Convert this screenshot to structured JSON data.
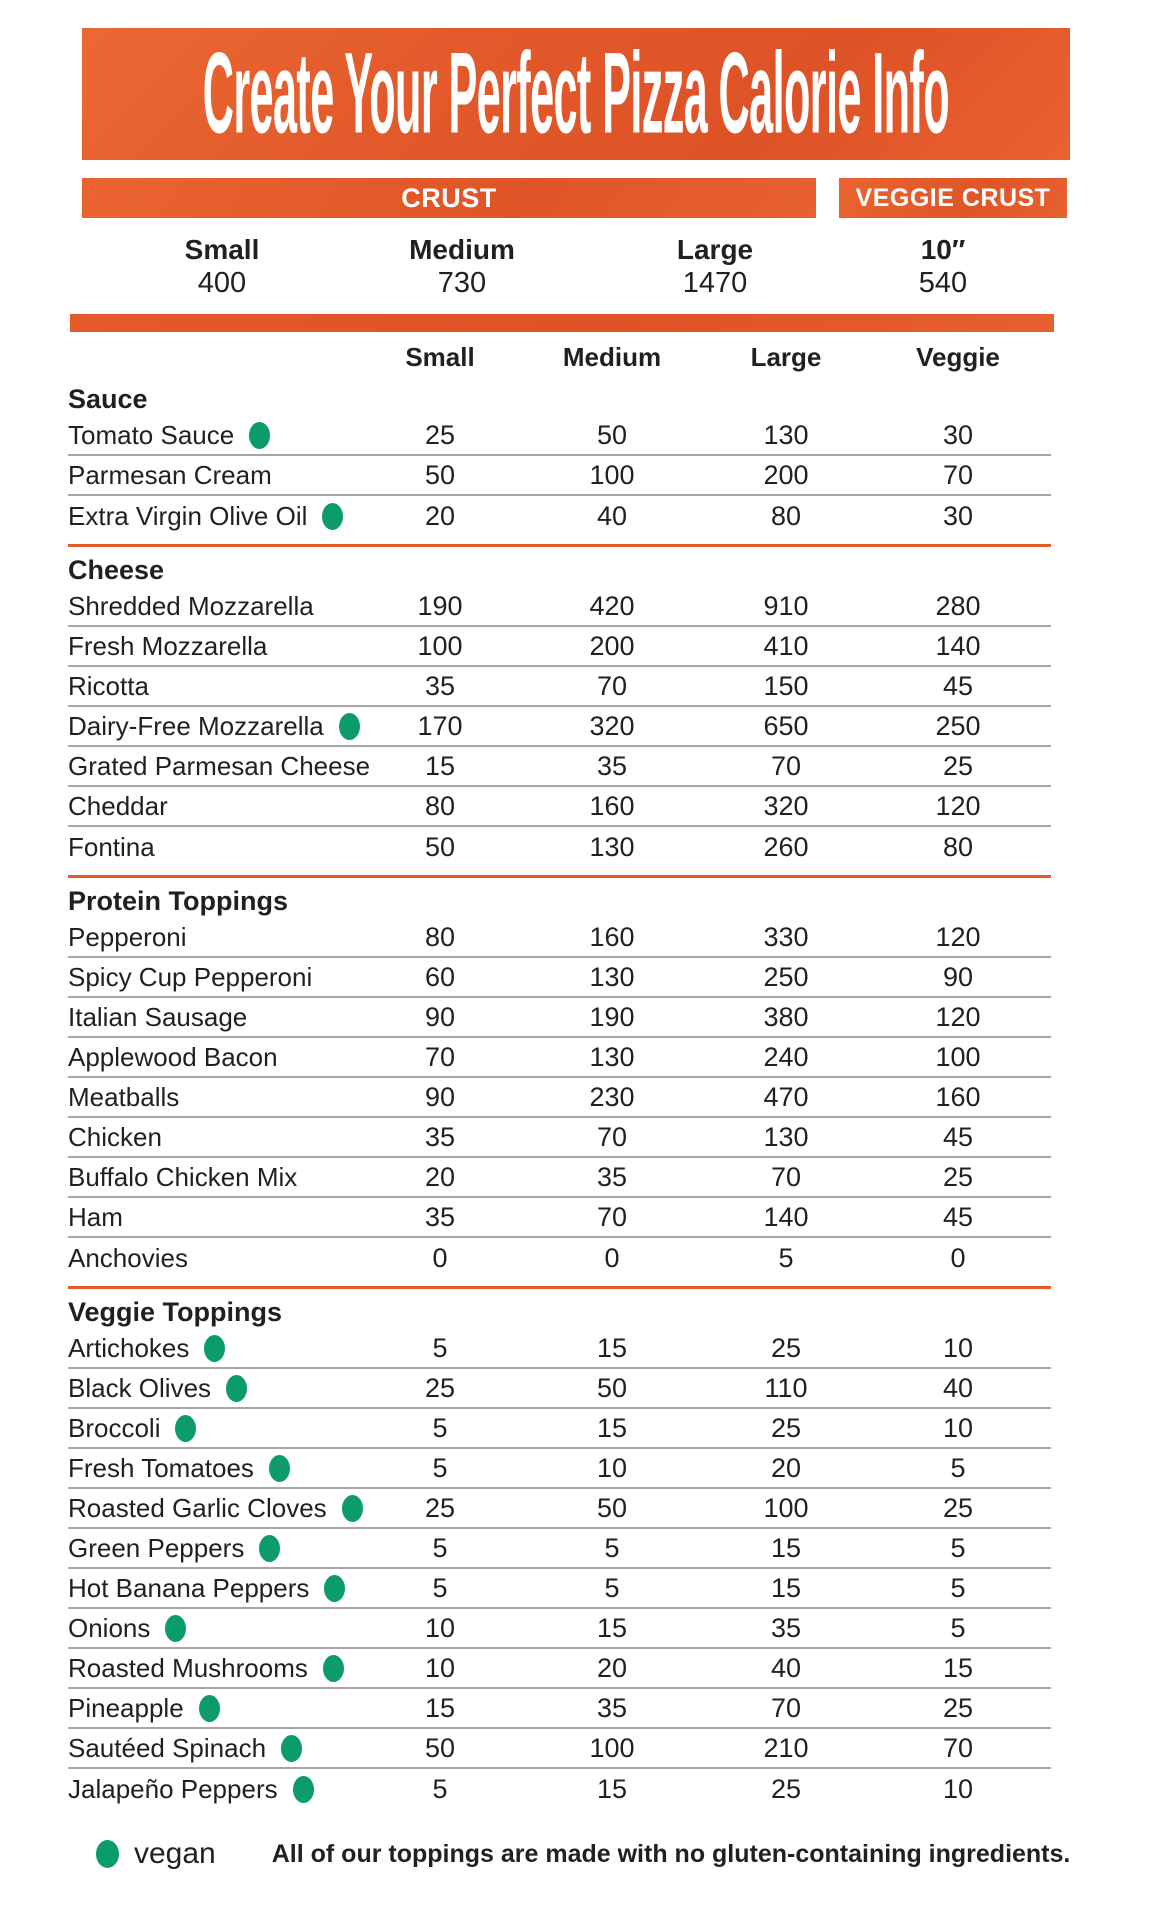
{
  "title": "Create Your Perfect Pizza Calorie Info",
  "crust_header": {
    "crust": "CRUST",
    "veggie_crust": "VEGGIE CRUST"
  },
  "crust_sizes": [
    {
      "label": "Small",
      "value": "400"
    },
    {
      "label": "Medium",
      "value": "730"
    },
    {
      "label": "Large",
      "value": "1470"
    },
    {
      "label": "10″",
      "value": "540"
    }
  ],
  "columns": [
    "Small",
    "Medium",
    "Large",
    "Veggie"
  ],
  "sections": [
    {
      "name": "Sauce",
      "rows": [
        {
          "label": "Tomato Sauce",
          "vegan": true,
          "values": [
            "25",
            "50",
            "130",
            "30"
          ]
        },
        {
          "label": "Parmesan Cream",
          "vegan": false,
          "values": [
            "50",
            "100",
            "200",
            "70"
          ]
        },
        {
          "label": "Extra Virgin Olive Oil",
          "vegan": true,
          "values": [
            "20",
            "40",
            "80",
            "30"
          ]
        }
      ]
    },
    {
      "name": "Cheese",
      "rows": [
        {
          "label": "Shredded Mozzarella",
          "vegan": false,
          "values": [
            "190",
            "420",
            "910",
            "280"
          ]
        },
        {
          "label": "Fresh Mozzarella",
          "vegan": false,
          "values": [
            "100",
            "200",
            "410",
            "140"
          ]
        },
        {
          "label": "Ricotta",
          "vegan": false,
          "values": [
            "35",
            "70",
            "150",
            "45"
          ]
        },
        {
          "label": "Dairy-Free Mozzarella",
          "vegan": true,
          "values": [
            "170",
            "320",
            "650",
            "250"
          ]
        },
        {
          "label": "Grated Parmesan Cheese",
          "vegan": false,
          "values": [
            "15",
            "35",
            "70",
            "25"
          ]
        },
        {
          "label": "Cheddar",
          "vegan": false,
          "values": [
            "80",
            "160",
            "320",
            "120"
          ]
        },
        {
          "label": "Fontina",
          "vegan": false,
          "values": [
            "50",
            "130",
            "260",
            "80"
          ]
        }
      ]
    },
    {
      "name": "Protein Toppings",
      "rows": [
        {
          "label": "Pepperoni",
          "vegan": false,
          "values": [
            "80",
            "160",
            "330",
            "120"
          ]
        },
        {
          "label": "Spicy Cup Pepperoni",
          "vegan": false,
          "values": [
            "60",
            "130",
            "250",
            "90"
          ]
        },
        {
          "label": "Italian Sausage",
          "vegan": false,
          "values": [
            "90",
            "190",
            "380",
            "120"
          ]
        },
        {
          "label": "Applewood Bacon",
          "vegan": false,
          "values": [
            "70",
            "130",
            "240",
            "100"
          ]
        },
        {
          "label": "Meatballs",
          "vegan": false,
          "values": [
            "90",
            "230",
            "470",
            "160"
          ]
        },
        {
          "label": "Chicken",
          "vegan": false,
          "values": [
            "35",
            "70",
            "130",
            "45"
          ]
        },
        {
          "label": "Buffalo Chicken Mix",
          "vegan": false,
          "values": [
            "20",
            "35",
            "70",
            "25"
          ]
        },
        {
          "label": "Ham",
          "vegan": false,
          "values": [
            "35",
            "70",
            "140",
            "45"
          ]
        },
        {
          "label": "Anchovies",
          "vegan": false,
          "values": [
            "0",
            "0",
            "5",
            "0"
          ]
        }
      ]
    },
    {
      "name": "Veggie Toppings",
      "rows": [
        {
          "label": "Artichokes",
          "vegan": true,
          "values": [
            "5",
            "15",
            "25",
            "10"
          ]
        },
        {
          "label": "Black Olives",
          "vegan": true,
          "values": [
            "25",
            "50",
            "110",
            "40"
          ]
        },
        {
          "label": "Broccoli",
          "vegan": true,
          "values": [
            "5",
            "15",
            "25",
            "10"
          ]
        },
        {
          "label": "Fresh Tomatoes",
          "vegan": true,
          "values": [
            "5",
            "10",
            "20",
            "5"
          ]
        },
        {
          "label": "Roasted Garlic Cloves",
          "vegan": true,
          "values": [
            "25",
            "50",
            "100",
            "25"
          ]
        },
        {
          "label": "Green Peppers",
          "vegan": true,
          "values": [
            "5",
            "5",
            "15",
            "5"
          ]
        },
        {
          "label": "Hot Banana Peppers",
          "vegan": true,
          "values": [
            "5",
            "5",
            "15",
            "5"
          ]
        },
        {
          "label": "Onions",
          "vegan": true,
          "values": [
            "10",
            "15",
            "35",
            "5"
          ]
        },
        {
          "label": "Roasted Mushrooms",
          "vegan": true,
          "values": [
            "10",
            "20",
            "40",
            "15"
          ]
        },
        {
          "label": "Pineapple",
          "vegan": true,
          "values": [
            "15",
            "35",
            "70",
            "25"
          ]
        },
        {
          "label": "Sautéed Spinach",
          "vegan": true,
          "values": [
            "50",
            "100",
            "210",
            "70"
          ]
        },
        {
          "label": "Jalapeño Peppers",
          "vegan": true,
          "values": [
            "5",
            "15",
            "25",
            "10"
          ]
        }
      ]
    },
    {
      "_comment": ""
    }
  ],
  "legend": {
    "vegan_label": "vegan"
  },
  "footnote": "All of our toppings are made with no gluten-containing ingredients.",
  "colors": {
    "accent_orange": "#e25a2b",
    "vegan_green": "#0c9b6d",
    "text_dark": "#231f20",
    "separator_gray": "#a7a5a6"
  }
}
